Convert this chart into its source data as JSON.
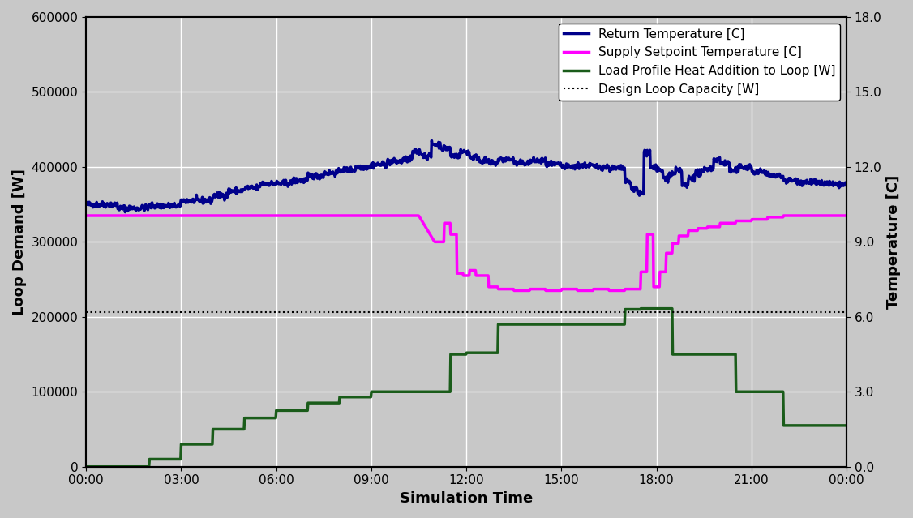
{
  "title": "",
  "xlabel": "Simulation Time",
  "ylabel_left": "Loop Demand [W]",
  "ylabel_right": "Temperature [C]",
  "background_color": "#c8c8c8",
  "grid_color": "white",
  "ylim_left": [
    0,
    600000
  ],
  "ylim_right": [
    0.0,
    18.0
  ],
  "yticks_left": [
    0,
    100000,
    200000,
    300000,
    400000,
    500000,
    600000
  ],
  "yticks_right": [
    0.0,
    3.0,
    6.0,
    9.0,
    12.0,
    15.0,
    18.0
  ],
  "xtick_labels": [
    "00:00",
    "03:00",
    "06:00",
    "09:00",
    "12:00",
    "15:00",
    "18:00",
    "21:00",
    "00:00"
  ],
  "design_loop_capacity": 206000,
  "legend_labels": [
    "Return Temperature [C]",
    "Supply Setpoint Temperature [C]",
    "Load Profile Heat Addition to Loop [W]",
    "Design Loop Capacity [W]"
  ],
  "line_colors": {
    "return_temp": "#00008B",
    "supply_setpoint": "#FF00FF",
    "load_profile": "#1a5c1a",
    "design_capacity": "black"
  },
  "line_widths": {
    "return_temp": 2.5,
    "supply_setpoint": 2.5,
    "load_profile": 2.5,
    "design_capacity": 1.5
  }
}
